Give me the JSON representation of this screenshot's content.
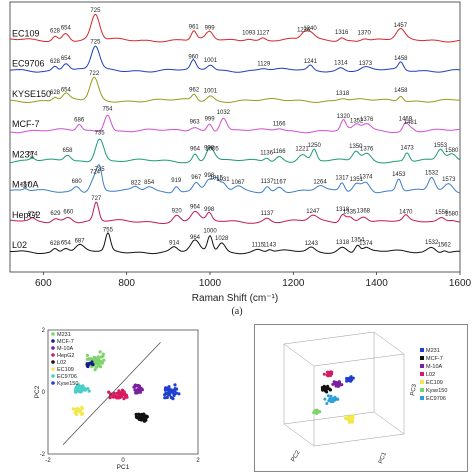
{
  "chart_data": [
    {
      "type": "line",
      "xlabel": "Raman Shift (cm⁻¹)",
      "xlim": [
        520,
        1600
      ],
      "xticks": [
        600,
        800,
        1000,
        1200,
        1400,
        1600
      ],
      "panel_label": "(a)",
      "series": [
        {
          "name": "EC109",
          "color": "#d62728",
          "peaks": [
            628,
            654,
            725,
            961,
            999,
            1093,
            1127,
            1225,
            1240,
            1316,
            1370,
            1457
          ],
          "peak_labels": [
            "628",
            "654",
            "725",
            "961",
            "999",
            "1093",
            "1127",
            "1225",
            "1240",
            "1316",
            "1370",
            "1457"
          ],
          "peak_heights": [
            0.18,
            0.3,
            1.0,
            0.35,
            0.3,
            0.1,
            0.1,
            0.22,
            0.28,
            0.12,
            0.1,
            0.4
          ]
        },
        {
          "name": "EC9706",
          "color": "#1f3fbf",
          "peaks": [
            628,
            654,
            725,
            960,
            1001,
            1129,
            1241,
            1314,
            1373,
            1458
          ],
          "peak_labels": [
            "628",
            "654",
            "725",
            "960",
            "1001",
            "1129",
            "1241",
            "1314",
            "1373",
            "1458"
          ],
          "peak_heights": [
            0.18,
            0.3,
            0.95,
            0.35,
            0.22,
            0.08,
            0.18,
            0.12,
            0.1,
            0.3
          ]
        },
        {
          "name": "KYSE150",
          "color": "#9a9a1a",
          "peaks": [
            628,
            654,
            722,
            962,
            1001,
            1318,
            1458
          ],
          "peak_labels": [
            "628",
            "654",
            "722",
            "962",
            "1001",
            "1318",
            "1458"
          ],
          "peak_heights": [
            0.15,
            0.25,
            0.9,
            0.25,
            0.2,
            0.1,
            0.22
          ]
        },
        {
          "name": "MCF-7",
          "color": "#d04fd0",
          "peaks": [
            686,
            754,
            963,
            999,
            1032,
            1166,
            1320,
            1352,
            1376,
            1469,
            1481
          ],
          "peak_labels": [
            "686",
            "754",
            "963",
            "999",
            "1032",
            "1166",
            "1320",
            "1352",
            "1376",
            "1469",
            "1481"
          ],
          "peak_heights": [
            0.25,
            0.7,
            0.18,
            0.3,
            0.55,
            0.1,
            0.4,
            0.22,
            0.28,
            0.3,
            0.15
          ]
        },
        {
          "name": "M231",
          "color": "#1a9a7a",
          "peaks": [
            574,
            658,
            735,
            964,
            998,
            1005,
            1136,
            1166,
            1221,
            1250,
            1350,
            1376,
            1473,
            1553,
            1580
          ],
          "peak_labels": [
            "574",
            "658",
            "735",
            "964",
            "998",
            "1005",
            "1136",
            "1166",
            "1221",
            "1250",
            "1350",
            "1376",
            "1473",
            "1553",
            "1580"
          ],
          "peak_heights": [
            0.1,
            0.25,
            0.95,
            0.3,
            0.35,
            0.3,
            0.15,
            0.2,
            0.3,
            0.45,
            0.4,
            0.3,
            0.35,
            0.45,
            0.25
          ]
        },
        {
          "name": "M-10A",
          "color": "#3a7fc8",
          "peaks": [
            557,
            680,
            724,
            735,
            822,
            854,
            919,
            967,
            998,
            1015,
            1031,
            1067,
            1137,
            1167,
            1264,
            1317,
            1351,
            1374,
            1453,
            1532,
            1573
          ],
          "peak_labels": [
            "557",
            "680",
            "724",
            "735",
            "822",
            "854",
            "919",
            "967",
            "998",
            "1015",
            "1031",
            "1067",
            "1137",
            "1167",
            "1264",
            "1317",
            "1351",
            "1374",
            "1453",
            "1532",
            "1573"
          ],
          "peak_heights": [
            0.08,
            0.22,
            0.6,
            0.7,
            0.15,
            0.18,
            0.25,
            0.38,
            0.45,
            0.35,
            0.3,
            0.18,
            0.22,
            0.2,
            0.2,
            0.35,
            0.3,
            0.4,
            0.5,
            0.55,
            0.3
          ]
        },
        {
          "name": "HepG2",
          "color": "#c2185b",
          "peaks": [
            574,
            629,
            660,
            727,
            920,
            964,
            998,
            1137,
            1247,
            1318,
            1335,
            1368,
            1470,
            1556,
            1580
          ],
          "peak_labels": [
            "574",
            "629",
            "660",
            "727",
            "920",
            "964",
            "998",
            "1137",
            "1247",
            "1318",
            "1335",
            "1368",
            "1470",
            "1556",
            "1580"
          ],
          "peak_heights": [
            0.1,
            0.15,
            0.2,
            0.75,
            0.25,
            0.4,
            0.3,
            0.15,
            0.22,
            0.3,
            0.2,
            0.25,
            0.2,
            0.18,
            0.12
          ]
        },
        {
          "name": "L02",
          "color": "#111111",
          "peaks": [
            628,
            654,
            687,
            755,
            914,
            964,
            1000,
            1028,
            1115,
            1143,
            1243,
            1318,
            1354,
            1374,
            1532,
            1562
          ],
          "peak_labels": [
            "628",
            "654",
            "687",
            "755",
            "914",
            "964",
            "1000",
            "1028",
            "1115",
            "1143",
            "1243",
            "1318",
            "1354",
            "1374",
            "1532",
            "1562"
          ],
          "peak_heights": [
            0.15,
            0.18,
            0.25,
            0.7,
            0.18,
            0.4,
            0.65,
            0.35,
            0.1,
            0.1,
            0.15,
            0.2,
            0.3,
            0.15,
            0.2,
            0.1
          ]
        }
      ]
    },
    {
      "type": "scatter",
      "xlabel": "PC1",
      "ylabel": "PC2",
      "xlim": [
        -2,
        2
      ],
      "ylim": [
        -2,
        2
      ],
      "xtick_labels": [
        "-2",
        "0",
        "2"
      ],
      "ytick_labels": [
        "2",
        "0",
        "-2"
      ],
      "legend_position": "top-left",
      "legend": [
        {
          "name": "M231",
          "color": "#7fd36c"
        },
        {
          "name": "MCF-7",
          "color": "#1a1a8c"
        },
        {
          "name": "M-10A",
          "color": "#7b1fa2"
        },
        {
          "name": "HepG2",
          "color": "#d81b60"
        },
        {
          "name": "L02",
          "color": "#111111"
        },
        {
          "name": "EC109",
          "color": "#f2e84b"
        },
        {
          "name": "EC9706",
          "color": "#4ad0c8"
        },
        {
          "name": "Kyse150",
          "color": "#1e3fd0"
        }
      ],
      "clusters": [
        {
          "series": "M231",
          "cx": -0.7,
          "cy": 1.0,
          "sx": 0.35,
          "sy": 0.35,
          "n": 55
        },
        {
          "series": "EC9706",
          "cx": -1.1,
          "cy": 0.1,
          "sx": 0.25,
          "sy": 0.18,
          "n": 35
        },
        {
          "series": "M-10A",
          "cx": 0.4,
          "cy": 0.1,
          "sx": 0.25,
          "sy": 0.18,
          "n": 25
        },
        {
          "series": "HepG2",
          "cx": -0.1,
          "cy": -0.1,
          "sx": 0.35,
          "sy": 0.2,
          "n": 45
        },
        {
          "series": "Kyse150",
          "cx": 1.3,
          "cy": 0.0,
          "sx": 0.25,
          "sy": 0.3,
          "n": 40
        },
        {
          "series": "L02",
          "cx": 0.5,
          "cy": -0.8,
          "sx": 0.2,
          "sy": 0.2,
          "n": 45
        },
        {
          "series": "EC109",
          "cx": -1.2,
          "cy": -0.6,
          "sx": 0.18,
          "sy": 0.2,
          "n": 20
        },
        {
          "series": "MCF-7",
          "cx": -0.9,
          "cy": 0.9,
          "sx": 0.15,
          "sy": 0.15,
          "n": 8
        }
      ],
      "separator_line": {
        "x1": -1.6,
        "y1": -1.7,
        "x2": 1.0,
        "y2": 1.6
      }
    },
    {
      "type": "scatter",
      "dimensions": 3,
      "axes": [
        "PC1",
        "PC2",
        "PC3"
      ],
      "legend_position": "right",
      "legend": [
        {
          "name": "M231",
          "color": "#1e3fd0"
        },
        {
          "name": "MCF-7",
          "color": "#111111"
        },
        {
          "name": "M-10A",
          "color": "#7b1fa2"
        },
        {
          "name": "L02",
          "color": "#d81b60"
        },
        {
          "name": "EC109",
          "color": "#f2e84b"
        },
        {
          "name": "Kyse150",
          "color": "#7fd36c"
        },
        {
          "name": "EC9706",
          "color": "#2ea0d8"
        }
      ],
      "clusters": [
        {
          "series": "M231",
          "cx": 0.55,
          "cy": 0.65,
          "sx": 0.05,
          "sy": 0.04,
          "n": 25
        },
        {
          "series": "MCF-7",
          "cx": 0.35,
          "cy": 0.55,
          "sx": 0.06,
          "sy": 0.05,
          "n": 20
        },
        {
          "series": "M-10A",
          "cx": 0.45,
          "cy": 0.6,
          "sx": 0.05,
          "sy": 0.04,
          "n": 25
        },
        {
          "series": "L02",
          "cx": 0.38,
          "cy": 0.7,
          "sx": 0.05,
          "sy": 0.05,
          "n": 20
        },
        {
          "series": "EC109",
          "cx": 0.55,
          "cy": 0.25,
          "sx": 0.06,
          "sy": 0.05,
          "n": 30
        },
        {
          "series": "Kyse150",
          "cx": 0.28,
          "cy": 0.32,
          "sx": 0.04,
          "sy": 0.03,
          "n": 15
        },
        {
          "series": "EC9706",
          "cx": 0.4,
          "cy": 0.45,
          "sx": 0.08,
          "sy": 0.06,
          "n": 20
        }
      ]
    }
  ]
}
